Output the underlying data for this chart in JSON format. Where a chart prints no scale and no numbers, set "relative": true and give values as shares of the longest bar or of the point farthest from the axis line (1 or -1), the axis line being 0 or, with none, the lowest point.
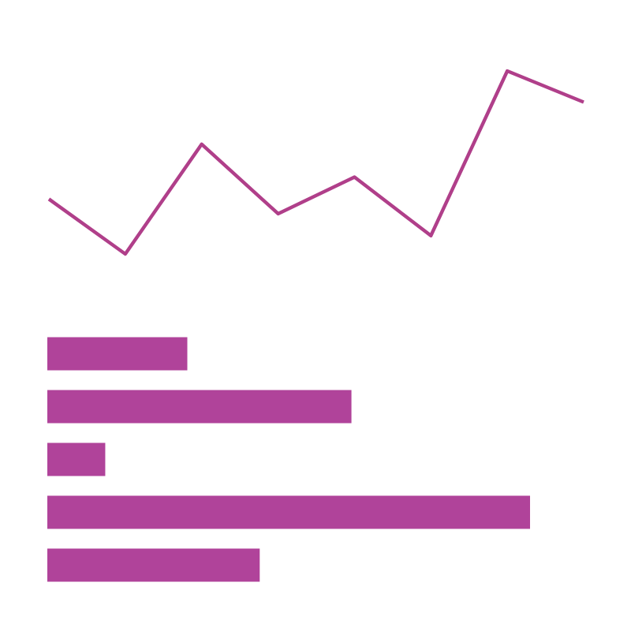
{
  "chart_data": [
    {
      "type": "line",
      "relative": true,
      "categories": [
        null,
        null,
        null,
        null,
        null,
        null,
        null,
        null
      ],
      "values": [
        0.3,
        0,
        0.6,
        0.22,
        0.42,
        0.1,
        1,
        0.83
      ],
      "color": "#b03f8a"
    },
    {
      "type": "bar",
      "orientation": "horizontal",
      "relative": true,
      "categories": [
        null,
        null,
        null,
        null,
        null
      ],
      "values": [
        0.29,
        0.63,
        0.12,
        1,
        0.44
      ],
      "color": "#b0439a"
    }
  ]
}
